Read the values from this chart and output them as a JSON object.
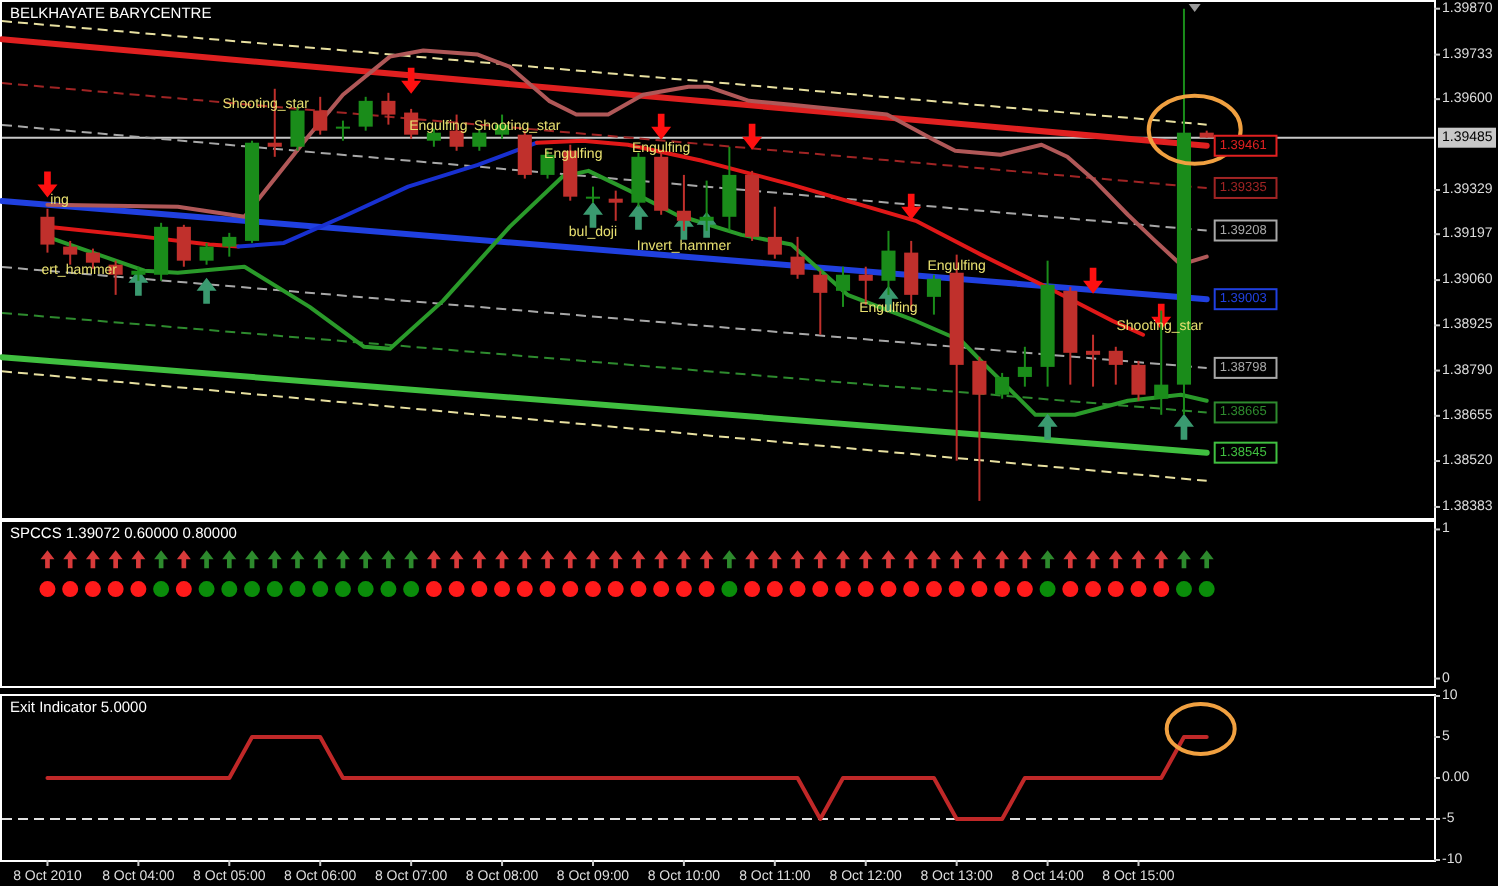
{
  "chart_data": [
    {
      "type": "candlestick",
      "title": "BELKHAYATE BARYCENTRE",
      "tick_labels": "y",
      "xlim": [
        "2010-10-08T02:30",
        "2010-10-08T18:15"
      ],
      "ylim": [
        1.3835,
        1.3989
      ],
      "yticks": [
        {
          "value": 1.3987,
          "label": "1.39870"
        },
        1.39733,
        {
          "value": 1.396,
          "label": "1.39600"
        },
        1.39329,
        1.39197,
        {
          "value": 1.3906,
          "label": "1.39060"
        },
        1.38925,
        {
          "value": 1.3879,
          "label": "1.38790"
        },
        1.38655,
        {
          "value": 1.3852,
          "label": "1.38520"
        },
        1.38383
      ],
      "x": [
        "2010-10-08T03:00",
        "2010-10-08T03:15",
        "2010-10-08T03:30",
        "2010-10-08T03:45",
        "2010-10-08T04:00",
        "2010-10-08T04:15",
        "2010-10-08T04:30",
        "2010-10-08T04:45",
        "2010-10-08T05:00",
        "2010-10-08T05:15",
        "2010-10-08T05:30",
        "2010-10-08T05:45",
        "2010-10-08T06:00",
        "2010-10-08T06:15",
        "2010-10-08T06:30",
        "2010-10-08T06:45",
        "2010-10-08T07:00",
        "2010-10-08T07:15",
        "2010-10-08T07:30",
        "2010-10-08T07:45",
        "2010-10-08T08:00",
        "2010-10-08T08:15",
        "2010-10-08T08:30",
        "2010-10-08T08:45",
        "2010-10-08T09:00",
        "2010-10-08T09:15",
        "2010-10-08T09:30",
        "2010-10-08T09:45",
        "2010-10-08T10:00",
        "2010-10-08T10:15",
        "2010-10-08T10:30",
        "2010-10-08T10:45",
        "2010-10-08T11:00",
        "2010-10-08T11:15",
        "2010-10-08T11:30",
        "2010-10-08T11:45",
        "2010-10-08T12:00",
        "2010-10-08T12:15",
        "2010-10-08T12:30",
        "2010-10-08T12:45",
        "2010-10-08T13:00",
        "2010-10-08T13:15",
        "2010-10-08T13:30",
        "2010-10-08T13:45",
        "2010-10-08T14:00",
        "2010-10-08T14:15",
        "2010-10-08T14:30",
        "2010-10-08T14:45",
        "2010-10-08T15:00",
        "2010-10-08T15:15",
        "2010-10-08T15:30",
        "2010-10-08T15:45"
      ],
      "ohlc": [
        [
          1.39249,
          1.39273,
          1.39142,
          1.39166
        ],
        [
          1.3916,
          1.39177,
          1.39106,
          1.39136
        ],
        [
          1.39142,
          1.39154,
          1.39094,
          1.39112
        ],
        [
          1.39106,
          1.39118,
          1.39016,
          1.39076
        ],
        [
          1.39076,
          1.391,
          1.39058,
          1.39088
        ],
        [
          1.39076,
          1.39231,
          1.39058,
          1.39219
        ],
        [
          1.39219,
          1.39225,
          1.391,
          1.39118
        ],
        [
          1.39118,
          1.39171,
          1.39106,
          1.3916
        ],
        [
          1.3916,
          1.39201,
          1.3913,
          1.39189
        ],
        [
          1.39177,
          1.39476,
          1.39171,
          1.3947
        ],
        [
          1.3947,
          1.39631,
          1.39428,
          1.39458
        ],
        [
          1.39458,
          1.39577,
          1.39446,
          1.39566
        ],
        [
          1.39566,
          1.39607,
          1.39494,
          1.39506
        ],
        [
          1.39512,
          1.39536,
          1.39476,
          1.39518
        ],
        [
          1.39518,
          1.39607,
          1.39506,
          1.39595
        ],
        [
          1.39595,
          1.39619,
          1.39524,
          1.39554
        ],
        [
          1.3956,
          1.39571,
          1.39482,
          1.39494
        ],
        [
          1.39476,
          1.39512,
          1.39458,
          1.395
        ],
        [
          1.39506,
          1.39554,
          1.39446,
          1.39458
        ],
        [
          1.39458,
          1.39512,
          1.39446,
          1.395
        ],
        [
          1.39494,
          1.39554,
          1.39482,
          1.39524
        ],
        [
          1.39494,
          1.39506,
          1.39363,
          1.39374
        ],
        [
          1.39374,
          1.39446,
          1.39363,
          1.39434
        ],
        [
          1.39446,
          1.39464,
          1.39297,
          1.39309
        ],
        [
          1.39303,
          1.39339,
          1.39291,
          1.39309
        ],
        [
          1.39303,
          1.39327,
          1.39237,
          1.39291
        ],
        [
          1.39291,
          1.3944,
          1.39279,
          1.39428
        ],
        [
          1.39428,
          1.3944,
          1.39255,
          1.39267
        ],
        [
          1.39267,
          1.39374,
          1.39207,
          1.39237
        ],
        [
          1.39237,
          1.39357,
          1.39207,
          1.39249
        ],
        [
          1.39249,
          1.39458,
          1.39207,
          1.39374
        ],
        [
          1.39374,
          1.39386,
          1.39177,
          1.39189
        ],
        [
          1.39189,
          1.39279,
          1.39124,
          1.39136
        ],
        [
          1.3913,
          1.39189,
          1.39064,
          1.39076
        ],
        [
          1.39076,
          1.39088,
          1.38897,
          1.39022
        ],
        [
          1.39028,
          1.391,
          1.3898,
          1.39076
        ],
        [
          1.39076,
          1.391,
          1.38986,
          1.39058
        ],
        [
          1.39058,
          1.39207,
          1.39016,
          1.39148
        ],
        [
          1.39142,
          1.39177,
          1.38969,
          1.39016
        ],
        [
          1.3901,
          1.39076,
          1.38957,
          1.39064
        ],
        [
          1.39082,
          1.39136,
          1.38521,
          1.38807
        ],
        [
          1.38819,
          1.38831,
          1.38401,
          1.38718
        ],
        [
          1.38718,
          1.38783,
          1.38706,
          1.38771
        ],
        [
          1.38771,
          1.38861,
          1.38742,
          1.38801
        ],
        [
          1.38801,
          1.39118,
          1.38742,
          1.39046
        ],
        [
          1.39028,
          1.3904,
          1.38748,
          1.38843
        ],
        [
          1.38849,
          1.38897,
          1.38742,
          1.38837
        ],
        [
          1.38849,
          1.38861,
          1.38748,
          1.38807
        ],
        [
          1.38807,
          1.38819,
          1.387,
          1.38718
        ],
        [
          1.38706,
          1.38969,
          1.38658,
          1.38748
        ],
        [
          1.38748,
          1.3987,
          1.38658,
          1.395
        ],
        [
          1.395,
          1.39506,
          1.39485,
          1.39485
        ]
      ],
      "colors": [
        "#c0302c",
        "#c0302c",
        "#c0302c",
        "#c0302c",
        "#1a8c1a",
        "#1a8c1a",
        "#c0302c",
        "#1a8c1a",
        "#1a8c1a",
        "#1a8c1a",
        "#c0302c",
        "#1a8c1a",
        "#c0302c",
        "#1a8c1a",
        "#1a8c1a",
        "#c0302c",
        "#c0302c",
        "#1a8c1a",
        "#c0302c",
        "#1a8c1a",
        "#1a8c1a",
        "#c0302c",
        "#1a8c1a",
        "#c0302c",
        "#1a8c1a",
        "#c0302c",
        "#1a8c1a",
        "#c0302c",
        "#c0302c",
        "#1a8c1a",
        "#1a8c1a",
        "#c0302c",
        "#c0302c",
        "#c0302c",
        "#c0302c",
        "#1a8c1a",
        "#c0302c",
        "#1a8c1a",
        "#c0302c",
        "#1a8c1a",
        "#c0302c",
        "#c0302c",
        "#1a8c1a",
        "#1a8c1a",
        "#1a8c1a",
        "#c0302c",
        "#c0302c",
        "#c0302c",
        "#c0302c",
        "#1a8c1a",
        "#1a8c1a",
        "#c0302c"
      ],
      "series": [
        {
          "type": "line",
          "color": "#e8e0a0",
          "line_style": "dashed",
          "x": [
            "2010-10-08T02:30",
            "2010-10-08T15:45"
          ],
          "values": [
            1.39833,
            1.39524
          ]
        },
        {
          "type": "line",
          "color": "#e02020",
          "x": [
            "2010-10-08T02:30",
            "2010-10-08T15:45"
          ],
          "values": [
            1.39779,
            1.39461
          ],
          "value_labels": [
            null,
            "1.39461"
          ]
        },
        {
          "type": "line",
          "color": "#a02424",
          "line_style": "dashed",
          "x": [
            "2010-10-08T02:30",
            "2010-10-08T15:45"
          ],
          "values": [
            1.39648,
            1.39335
          ],
          "value_labels": [
            null,
            "1.39335"
          ]
        },
        {
          "type": "line",
          "color": "#a8a8a8",
          "line_style": "dashed",
          "x": [
            "2010-10-08T02:30",
            "2010-10-08T15:45"
          ],
          "values": [
            1.39523,
            1.39208
          ],
          "value_labels": [
            null,
            "1.39208"
          ]
        },
        {
          "type": "line",
          "color": "#2040e0",
          "x": [
            "2010-10-08T02:30",
            "2010-10-08T15:45"
          ],
          "values": [
            1.39296,
            1.39003
          ],
          "value_labels": [
            null,
            "1.39003"
          ]
        },
        {
          "type": "line",
          "color": "#a8a8a8",
          "line_style": "dashed",
          "x": [
            "2010-10-08T02:30",
            "2010-10-08T15:45"
          ],
          "values": [
            1.39099,
            1.38798
          ],
          "value_labels": [
            null,
            "1.38798"
          ]
        },
        {
          "type": "line",
          "color": "#2e8b2e",
          "line_style": "dashed",
          "x": [
            "2010-10-08T02:30",
            "2010-10-08T15:45"
          ],
          "values": [
            1.38962,
            1.38665
          ],
          "value_labels": [
            null,
            "1.38665"
          ]
        },
        {
          "type": "line",
          "color": "#40c040",
          "x": [
            "2010-10-08T02:30",
            "2010-10-08T15:45"
          ],
          "values": [
            1.3883,
            1.38545
          ],
          "value_labels": [
            null,
            "1.38545"
          ]
        },
        {
          "type": "line",
          "color": "#e8e0a0",
          "line_style": "dashed",
          "x": [
            "2010-10-08T02:30",
            "2010-10-08T15:45"
          ],
          "values": [
            1.38788,
            1.38461
          ]
        },
        {
          "type": "line",
          "color": "#b05858",
          "x": [
            "2010-10-08T03:00",
            "2010-10-08T04:26",
            "2010-10-08T05:10",
            "2010-10-08T05:53",
            "2010-10-08T06:15",
            "2010-10-08T06:46",
            "2010-10-08T07:08",
            "2010-10-08T07:44",
            "2010-10-08T08:05",
            "2010-10-08T08:31",
            "2010-10-08T08:49",
            "2010-10-08T09:10",
            "2010-10-08T09:33",
            "2010-10-08T10:03",
            "2010-10-08T10:16",
            "2010-10-08T10:43",
            "2010-10-08T11:11",
            "2010-10-08T12:14",
            "2010-10-08T12:46",
            "2010-10-08T12:59",
            "2010-10-08T13:29",
            "2010-10-08T13:56",
            "2010-10-08T14:13",
            "2010-10-08T14:31",
            "2010-10-08T14:53",
            "2010-10-08T15:11",
            "2010-10-08T15:28",
            "2010-10-08T15:45"
          ],
          "values": [
            1.39285,
            1.39279,
            1.39249,
            1.39494,
            1.39613,
            1.39727,
            1.39745,
            1.39733,
            1.39697,
            1.39595,
            1.39554,
            1.39554,
            1.39613,
            1.39637,
            1.39637,
            1.39595,
            1.39583,
            1.39554,
            1.39476,
            1.39446,
            1.39434,
            1.39464,
            1.39428,
            1.39357,
            1.39255,
            1.39177,
            1.39106,
            1.3913
          ]
        },
        {
          "type": "line",
          "color": "#e01818",
          "x": [
            "2010-10-08T03:00",
            "2010-10-08T04:04",
            "2010-10-08T04:47",
            "2010-10-08T05:06"
          ],
          "values": [
            1.39219,
            1.39189,
            1.39166,
            1.3916
          ]
        },
        {
          "type": "line",
          "color": "#1830d0",
          "x": [
            "2010-10-08T05:06",
            "2010-10-08T05:36",
            "2010-10-08T06:15",
            "2010-10-08T06:58",
            "2010-10-08T07:44",
            "2010-10-08T08:23"
          ],
          "values": [
            1.3916,
            1.39171,
            1.39249,
            1.39339,
            1.39404,
            1.3947
          ]
        },
        {
          "type": "line",
          "color": "#e01818",
          "x": [
            "2010-10-08T08:23",
            "2010-10-08T08:53",
            "2010-10-08T09:23",
            "2010-10-08T10:12",
            "2010-10-08T11:11",
            "2010-10-08T12:33",
            "2010-10-08T13:16",
            "2010-10-08T13:59",
            "2010-10-08T14:43",
            "2010-10-08T15:03"
          ],
          "values": [
            1.3947,
            1.39476,
            1.39464,
            1.39416,
            1.39345,
            1.39237,
            1.39136,
            1.3904,
            1.38938,
            1.38897
          ]
        },
        {
          "type": "line",
          "color": "#2a9a2a",
          "x": [
            "2010-10-08T03:00",
            "2010-10-08T04:04",
            "2010-10-08T04:26",
            "2010-10-08T05:10",
            "2010-10-08T05:53",
            "2010-10-08T06:29",
            "2010-10-08T06:46",
            "2010-10-08T07:21",
            "2010-10-08T08:05",
            "2010-10-08T08:40",
            "2010-10-08T08:57",
            "2010-10-08T09:24",
            "2010-10-08T09:55",
            "2010-10-08T10:38",
            "2010-10-08T11:11",
            "2010-10-08T11:48",
            "2010-10-08T12:33",
            "2010-10-08T13:03",
            "2010-10-08T13:16",
            "2010-10-08T13:52",
            "2010-10-08T14:18",
            "2010-10-08T14:53",
            "2010-10-08T15:28",
            "2010-10-08T15:45"
          ],
          "values": [
            1.39189,
            1.39088,
            1.39082,
            1.391,
            1.3898,
            1.38861,
            1.38855,
            1.38998,
            1.39219,
            1.39369,
            1.39386,
            1.39327,
            1.39255,
            1.39195,
            1.39166,
            1.39016,
            1.38938,
            1.38879,
            1.38819,
            1.38658,
            1.38658,
            1.387,
            1.38718,
            1.387
          ]
        },
        {
          "type": "scatter",
          "marker": "triangle",
          "color": "#ff1010",
          "x": [
            "2010-10-08T03:00",
            "2010-10-08T07:00",
            "2010-10-08T09:45",
            "2010-10-08T10:45",
            "2010-10-08T12:30",
            "2010-10-08T14:30",
            "2010-10-08T15:15"
          ],
          "values": [
            1.39345,
            1.39655,
            1.39518,
            1.39488,
            1.39279,
            1.39058,
            1.38951
          ]
        },
        {
          "type": "scatter",
          "marker": "triangle",
          "color": "#3a9a70",
          "x": [
            "2010-10-08T04:00",
            "2010-10-08T04:45",
            "2010-10-08T09:00",
            "2010-10-08T09:30",
            "2010-10-08T10:00",
            "2010-10-08T10:15",
            "2010-10-08T12:15",
            "2010-10-08T14:00",
            "2010-10-08T15:30"
          ],
          "values": [
            1.39052,
            1.39028,
            1.39255,
            1.39249,
            1.39219,
            1.39225,
            1.39004,
            1.38622,
            1.38622
          ]
        }
      ],
      "ref_lines": [
        {
          "axis": "y",
          "value": 1.39485,
          "label": "1.39485",
          "color": "#c8c8c8"
        }
      ],
      "annotations": [
        {
          "text": "ing",
          "x": "2010-10-08T03:08",
          "y": 1.39297
        },
        {
          "text": "ert_hammer",
          "x": "2010-10-08T03:21",
          "y": 1.39088
        },
        {
          "text": "Shooting_star",
          "x": "2010-10-08T05:24",
          "y": 1.39583
        },
        {
          "text": "Engulfing",
          "x": "2010-10-08T07:18",
          "y": 1.39518
        },
        {
          "text": "Shooting_star",
          "x": "2010-10-08T08:10",
          "y": 1.39518
        },
        {
          "text": "Engulfing",
          "x": "2010-10-08T08:47",
          "y": 1.39434
        },
        {
          "text": "bul_doji",
          "x": "2010-10-08T09:00",
          "y": 1.39201
        },
        {
          "text": "Engulfing",
          "x": "2010-10-08T09:45",
          "y": 1.39452
        },
        {
          "text": "Invert_hammer",
          "x": "2010-10-08T10:00",
          "y": 1.3916
        },
        {
          "text": "Engulfing",
          "x": "2010-10-08T12:15",
          "y": 1.38975
        },
        {
          "text": "Engulfing",
          "x": "2010-10-08T13:00",
          "y": 1.391
        },
        {
          "text": "Shooting_star",
          "x": "2010-10-08T15:14",
          "y": 1.38921
        }
      ]
    },
    {
      "type": "scatter",
      "title": "SPCCS 1.39072 0.60000 0.80000",
      "tick_labels": "y",
      "xlim": [
        "2010-10-08T02:30",
        "2010-10-08T18:15"
      ],
      "ylim": [
        -0.05,
        1.05
      ],
      "yticks": [
        0,
        1
      ],
      "x": [
        "2010-10-08T03:00",
        "2010-10-08T03:15",
        "2010-10-08T03:30",
        "2010-10-08T03:45",
        "2010-10-08T04:00",
        "2010-10-08T04:15",
        "2010-10-08T04:30",
        "2010-10-08T04:45",
        "2010-10-08T05:00",
        "2010-10-08T05:15",
        "2010-10-08T05:30",
        "2010-10-08T05:45",
        "2010-10-08T06:00",
        "2010-10-08T06:15",
        "2010-10-08T06:30",
        "2010-10-08T06:45",
        "2010-10-08T07:00",
        "2010-10-08T07:15",
        "2010-10-08T07:30",
        "2010-10-08T07:45",
        "2010-10-08T08:00",
        "2010-10-08T08:15",
        "2010-10-08T08:30",
        "2010-10-08T08:45",
        "2010-10-08T09:00",
        "2010-10-08T09:15",
        "2010-10-08T09:30",
        "2010-10-08T09:45",
        "2010-10-08T10:00",
        "2010-10-08T10:15",
        "2010-10-08T10:30",
        "2010-10-08T10:45",
        "2010-10-08T11:00",
        "2010-10-08T11:15",
        "2010-10-08T11:30",
        "2010-10-08T11:45",
        "2010-10-08T12:00",
        "2010-10-08T12:15",
        "2010-10-08T12:30",
        "2010-10-08T12:45",
        "2010-10-08T13:00",
        "2010-10-08T13:15",
        "2010-10-08T13:30",
        "2010-10-08T13:45",
        "2010-10-08T14:00",
        "2010-10-08T14:15",
        "2010-10-08T14:30",
        "2010-10-08T14:45",
        "2010-10-08T15:00",
        "2010-10-08T15:15",
        "2010-10-08T15:30",
        "2010-10-08T15:45"
      ],
      "series": [
        {
          "marker": "triangle",
          "values": [
            0.8,
            0.8,
            0.8,
            0.8,
            0.8,
            0.8,
            0.8,
            0.8,
            0.8,
            0.8,
            0.8,
            0.8,
            0.8,
            0.8,
            0.8,
            0.8,
            0.8,
            0.8,
            0.8,
            0.8,
            0.8,
            0.8,
            0.8,
            0.8,
            0.8,
            0.8,
            0.8,
            0.8,
            0.8,
            0.8,
            0.8,
            0.8,
            0.8,
            0.8,
            0.8,
            0.8,
            0.8,
            0.8,
            0.8,
            0.8,
            0.8,
            0.8,
            0.8,
            0.8,
            0.8,
            0.8,
            0.8,
            0.8,
            0.8,
            0.8,
            0.8,
            0.8
          ],
          "colors": [
            "#d83a3a",
            "#d83a3a",
            "#d83a3a",
            "#d83a3a",
            "#d83a3a",
            "#2d8a2d",
            "#d83a3a",
            "#2d8a2d",
            "#2d8a2d",
            "#2d8a2d",
            "#2d8a2d",
            "#2d8a2d",
            "#2d8a2d",
            "#2d8a2d",
            "#2d8a2d",
            "#2d8a2d",
            "#2d8a2d",
            "#d83a3a",
            "#d83a3a",
            "#d83a3a",
            "#d83a3a",
            "#d83a3a",
            "#d83a3a",
            "#d83a3a",
            "#d83a3a",
            "#d83a3a",
            "#d83a3a",
            "#d83a3a",
            "#d83a3a",
            "#d83a3a",
            "#2d8a2d",
            "#d83a3a",
            "#d83a3a",
            "#d83a3a",
            "#d83a3a",
            "#d83a3a",
            "#d83a3a",
            "#d83a3a",
            "#d83a3a",
            "#d83a3a",
            "#d83a3a",
            "#d83a3a",
            "#d83a3a",
            "#d83a3a",
            "#2d8a2d",
            "#d83a3a",
            "#d83a3a",
            "#d83a3a",
            "#d83a3a",
            "#d83a3a",
            "#2d8a2d",
            "#2d8a2d"
          ]
        },
        {
          "marker": "circle",
          "values": [
            0.6,
            0.6,
            0.6,
            0.6,
            0.6,
            0.6,
            0.6,
            0.6,
            0.6,
            0.6,
            0.6,
            0.6,
            0.6,
            0.6,
            0.6,
            0.6,
            0.6,
            0.6,
            0.6,
            0.6,
            0.6,
            0.6,
            0.6,
            0.6,
            0.6,
            0.6,
            0.6,
            0.6,
            0.6,
            0.6,
            0.6,
            0.6,
            0.6,
            0.6,
            0.6,
            0.6,
            0.6,
            0.6,
            0.6,
            0.6,
            0.6,
            0.6,
            0.6,
            0.6,
            0.6,
            0.6,
            0.6,
            0.6,
            0.6,
            0.6,
            0.6,
            0.6
          ],
          "colors": [
            "#ff1a1a",
            "#ff1a1a",
            "#ff1a1a",
            "#ff1a1a",
            "#ff1a1a",
            "#0a8c0a",
            "#ff1a1a",
            "#0a8c0a",
            "#0a8c0a",
            "#0a8c0a",
            "#0a8c0a",
            "#0a8c0a",
            "#0a8c0a",
            "#0a8c0a",
            "#0a8c0a",
            "#0a8c0a",
            "#0a8c0a",
            "#ff1a1a",
            "#ff1a1a",
            "#ff1a1a",
            "#ff1a1a",
            "#ff1a1a",
            "#ff1a1a",
            "#ff1a1a",
            "#ff1a1a",
            "#ff1a1a",
            "#ff1a1a",
            "#ff1a1a",
            "#ff1a1a",
            "#ff1a1a",
            "#0a8c0a",
            "#ff1a1a",
            "#ff1a1a",
            "#ff1a1a",
            "#ff1a1a",
            "#ff1a1a",
            "#ff1a1a",
            "#ff1a1a",
            "#ff1a1a",
            "#ff1a1a",
            "#ff1a1a",
            "#ff1a1a",
            "#ff1a1a",
            "#ff1a1a",
            "#0a8c0a",
            "#ff1a1a",
            "#ff1a1a",
            "#ff1a1a",
            "#ff1a1a",
            "#ff1a1a",
            "#0a8c0a",
            "#0a8c0a"
          ]
        }
      ]
    },
    {
      "type": "line",
      "title": "Exit Indicator 5.0000",
      "xlim": [
        "2010-10-08T02:30",
        "2010-10-08T18:15"
      ],
      "ylim": [
        -10,
        10
      ],
      "yticks": [
        10,
        5,
        {
          "value": 0,
          "label": "0.00"
        },
        -5,
        -10
      ],
      "xticks": [
        {
          "value": "2010-10-08T03:00",
          "label": "8 Oct 2010"
        },
        {
          "value": "2010-10-08T04:00",
          "label": "8 Oct 04:00"
        },
        {
          "value": "2010-10-08T05:00",
          "label": "8 Oct 05:00"
        },
        {
          "value": "2010-10-08T06:00",
          "label": "8 Oct 06:00"
        },
        {
          "value": "2010-10-08T07:00",
          "label": "8 Oct 07:00"
        },
        {
          "value": "2010-10-08T08:00",
          "label": "8 Oct 08:00"
        },
        {
          "value": "2010-10-08T09:00",
          "label": "8 Oct 09:00"
        },
        {
          "value": "2010-10-08T10:00",
          "label": "8 Oct 10:00"
        },
        {
          "value": "2010-10-08T11:00",
          "label": "8 Oct 11:00"
        },
        {
          "value": "2010-10-08T12:00",
          "label": "8 Oct 12:00"
        },
        {
          "value": "2010-10-08T13:00",
          "label": "8 Oct 13:00"
        },
        {
          "value": "2010-10-08T14:00",
          "label": "8 Oct 14:00"
        },
        {
          "value": "2010-10-08T15:00",
          "label": "8 Oct 15:00"
        }
      ],
      "x": [
        "2010-10-08T03:00",
        "2010-10-08T03:15",
        "2010-10-08T03:30",
        "2010-10-08T03:45",
        "2010-10-08T04:00",
        "2010-10-08T04:15",
        "2010-10-08T04:30",
        "2010-10-08T04:45",
        "2010-10-08T05:00",
        "2010-10-08T05:15",
        "2010-10-08T05:30",
        "2010-10-08T05:45",
        "2010-10-08T06:00",
        "2010-10-08T06:15",
        "2010-10-08T06:30",
        "2010-10-08T06:45",
        "2010-10-08T07:00",
        "2010-10-08T07:15",
        "2010-10-08T07:30",
        "2010-10-08T07:45",
        "2010-10-08T08:00",
        "2010-10-08T08:15",
        "2010-10-08T08:30",
        "2010-10-08T08:45",
        "2010-10-08T09:00",
        "2010-10-08T09:15",
        "2010-10-08T09:30",
        "2010-10-08T09:45",
        "2010-10-08T10:00",
        "2010-10-08T10:15",
        "2010-10-08T10:30",
        "2010-10-08T10:45",
        "2010-10-08T11:00",
        "2010-10-08T11:15",
        "2010-10-08T11:30",
        "2010-10-08T11:45",
        "2010-10-08T12:00",
        "2010-10-08T12:15",
        "2010-10-08T12:30",
        "2010-10-08T12:45",
        "2010-10-08T13:00",
        "2010-10-08T13:15",
        "2010-10-08T13:30",
        "2010-10-08T13:45",
        "2010-10-08T14:00",
        "2010-10-08T14:15",
        "2010-10-08T14:30",
        "2010-10-08T14:45",
        "2010-10-08T15:00",
        "2010-10-08T15:15",
        "2010-10-08T15:30",
        "2010-10-08T15:45"
      ],
      "series": [
        {
          "color": "#c02828",
          "values": [
            0,
            0,
            0,
            0,
            0,
            0,
            0,
            0,
            0,
            5,
            5,
            5,
            5,
            0,
            0,
            0,
            0,
            0,
            0,
            0,
            0,
            0,
            0,
            0,
            0,
            0,
            0,
            0,
            0,
            0,
            0,
            0,
            0,
            0,
            -5,
            0,
            0,
            0,
            0,
            0,
            -5,
            -5,
            -5,
            0,
            0,
            0,
            0,
            0,
            0,
            0,
            5,
            5
          ]
        }
      ],
      "ref_lines": [
        {
          "axis": "y",
          "value": -5,
          "color": "#e0e0e0",
          "line_style": "dashed"
        }
      ]
    }
  ]
}
